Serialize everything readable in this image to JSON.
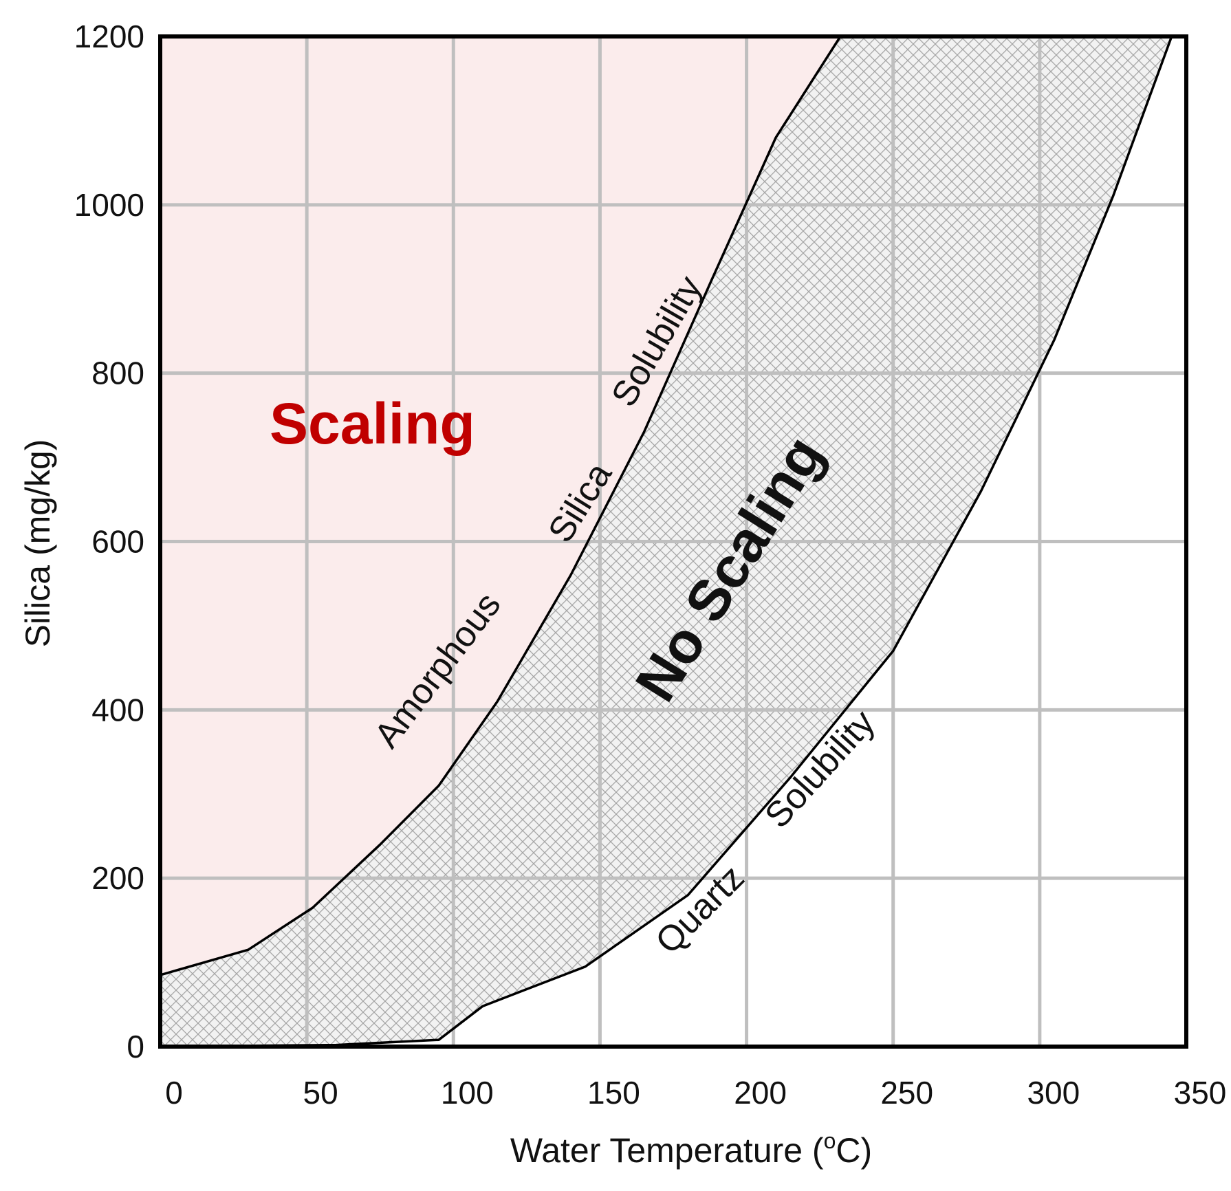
{
  "chart_data": {
    "type": "area",
    "xlabel": "Water Temperature (",
    "xlabel_sup": "o",
    "xlabel_end": "C)",
    "ylabel": "Silica (mg/kg)",
    "xlim": [
      0,
      350
    ],
    "ylim": [
      0,
      1200
    ],
    "xticks": [
      0,
      50,
      100,
      150,
      200,
      250,
      300,
      350
    ],
    "yticks": [
      0,
      200,
      400,
      600,
      800,
      1000,
      1200
    ],
    "grid": true,
    "series": [
      {
        "name": "Amorphous Silica Solubility",
        "x": [
          0,
          30,
          52,
          75,
          95,
          115,
          140,
          165,
          188,
          210,
          232
        ],
        "y": [
          85,
          115,
          165,
          240,
          310,
          410,
          560,
          730,
          910,
          1080,
          1200
        ]
      },
      {
        "name": "Quartz Solubility",
        "x": [
          0,
          60,
          95,
          110,
          145,
          180,
          215,
          250,
          280,
          305,
          325,
          345
        ],
        "y": [
          0,
          2,
          8,
          48,
          95,
          180,
          320,
          470,
          660,
          840,
          1010,
          1200
        ]
      }
    ],
    "annotations": [
      {
        "text": "Scaling",
        "region": "above amorphous silica solubility",
        "color": "#C00000"
      },
      {
        "text": "No Scaling",
        "region": "between amorphous silica and quartz solubility",
        "color": "#111111"
      }
    ],
    "curve_labels": {
      "amorphous": [
        "Amorphous",
        "Silica",
        "Solubility"
      ],
      "quartz": [
        "Quartz",
        "Solubility"
      ]
    },
    "colors": {
      "scaling_fill": "#FBECEC",
      "hatch_fill": "#F2F2F2",
      "hatch_line": "#A6A6A6",
      "grid": "#BFBFBF",
      "curve": "#000000",
      "frame": "#000000"
    }
  }
}
